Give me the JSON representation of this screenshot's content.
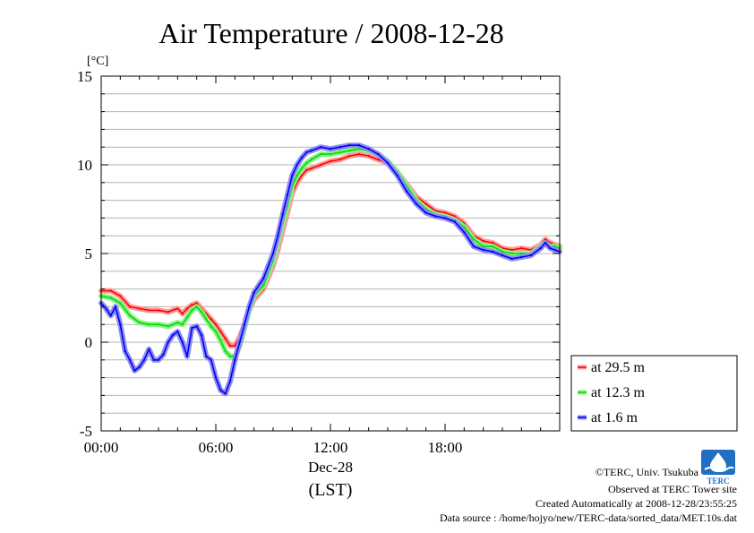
{
  "chart_data": {
    "type": "line",
    "title": "Air Temperature / 2008-12-28",
    "yunit": "[°C]",
    "xlabel_date": "Dec-28",
    "xlabel": "(LST)",
    "xlim": [
      0,
      24
    ],
    "ylim": [
      -5,
      15
    ],
    "x_ticks": [
      {
        "value": 0,
        "label": "00:00"
      },
      {
        "value": 6,
        "label": "06:00"
      },
      {
        "value": 12,
        "label": "12:00"
      },
      {
        "value": 18,
        "label": "18:00"
      }
    ],
    "y_ticks": [
      {
        "value": -5,
        "label": "-5"
      },
      {
        "value": 0,
        "label": "0"
      },
      {
        "value": 5,
        "label": "5"
      },
      {
        "value": 10,
        "label": "10"
      },
      {
        "value": 15,
        "label": "15"
      }
    ],
    "grid": true,
    "legend_position": "bottom-right outside",
    "series": [
      {
        "name": "at 29.5 m",
        "color": "#ff0000",
        "band_color": "#ff9a9a",
        "x": [
          0,
          0.5,
          1,
          1.5,
          2,
          2.5,
          3,
          3.5,
          4,
          4.25,
          4.5,
          4.75,
          5,
          5.25,
          5.5,
          5.75,
          6,
          6.25,
          6.5,
          6.75,
          7,
          7.25,
          7.5,
          7.75,
          8,
          8.5,
          9,
          9.25,
          9.5,
          9.75,
          10,
          10.25,
          10.5,
          10.75,
          11,
          11.5,
          12,
          12.5,
          13,
          13.5,
          14,
          14.5,
          15,
          15.5,
          16,
          16.5,
          17,
          17.5,
          18,
          18.5,
          19,
          19.5,
          20,
          20.5,
          21,
          21.5,
          22,
          22.5,
          23,
          23.25,
          23.5,
          23.75,
          24
        ],
        "y": [
          2.9,
          2.9,
          2.6,
          2.0,
          1.9,
          1.8,
          1.8,
          1.7,
          1.9,
          1.6,
          1.9,
          2.1,
          2.2,
          1.9,
          1.6,
          1.3,
          1.0,
          0.6,
          0.2,
          -0.2,
          -0.2,
          0.3,
          1.0,
          1.8,
          2.4,
          3.0,
          4.3,
          5.2,
          6.3,
          7.3,
          8.4,
          9.0,
          9.4,
          9.7,
          9.8,
          10.0,
          10.2,
          10.3,
          10.5,
          10.6,
          10.5,
          10.3,
          10.1,
          9.6,
          8.9,
          8.2,
          7.8,
          7.4,
          7.3,
          7.1,
          6.7,
          6.0,
          5.7,
          5.6,
          5.3,
          5.2,
          5.3,
          5.2,
          5.5,
          5.8,
          5.6,
          5.5,
          5.4
        ]
      },
      {
        "name": "at 12.3 m",
        "color": "#00dd00",
        "band_color": "#8cf08c",
        "x": [
          0,
          0.5,
          1,
          1.5,
          2,
          2.5,
          3,
          3.5,
          4,
          4.25,
          4.5,
          4.75,
          5,
          5.25,
          5.5,
          5.75,
          6,
          6.25,
          6.5,
          6.75,
          7,
          7.25,
          7.5,
          7.75,
          8,
          8.5,
          9,
          9.25,
          9.5,
          9.75,
          10,
          10.25,
          10.5,
          10.75,
          11,
          11.5,
          12,
          12.5,
          13,
          13.5,
          14,
          14.5,
          15,
          15.5,
          16,
          16.5,
          17,
          17.5,
          18,
          18.5,
          19,
          19.5,
          20,
          20.5,
          21,
          21.5,
          22,
          22.5,
          23,
          23.25,
          23.5,
          23.75,
          24
        ],
        "y": [
          2.6,
          2.5,
          2.2,
          1.5,
          1.1,
          1.0,
          1.0,
          0.9,
          1.1,
          1.0,
          1.4,
          1.8,
          2.0,
          1.7,
          1.3,
          0.9,
          0.6,
          0.1,
          -0.5,
          -0.8,
          -0.8,
          -0.2,
          0.8,
          1.8,
          2.6,
          3.2,
          4.6,
          5.6,
          6.7,
          7.7,
          8.8,
          9.4,
          9.8,
          10.1,
          10.3,
          10.6,
          10.6,
          10.7,
          10.8,
          10.9,
          10.8,
          10.6,
          10.2,
          9.6,
          8.8,
          8.0,
          7.5,
          7.2,
          7.1,
          6.9,
          6.5,
          5.8,
          5.4,
          5.4,
          5.1,
          5.0,
          5.0,
          5.0,
          5.4,
          5.6,
          5.4,
          5.4,
          5.3
        ]
      },
      {
        "name": "at 1.6 m",
        "color": "#0000ff",
        "band_color": "#8c8cf0",
        "x": [
          0,
          0.25,
          0.5,
          0.75,
          1,
          1.25,
          1.5,
          1.75,
          2,
          2.25,
          2.5,
          2.75,
          3,
          3.25,
          3.5,
          3.75,
          4,
          4.25,
          4.5,
          4.75,
          5,
          5.25,
          5.5,
          5.75,
          6,
          6.25,
          6.5,
          6.75,
          7,
          7.25,
          7.5,
          7.75,
          8,
          8.5,
          9,
          9.25,
          9.5,
          9.75,
          10,
          10.25,
          10.5,
          10.75,
          11,
          11.5,
          12,
          12.5,
          13,
          13.5,
          14,
          14.5,
          15,
          15.5,
          16,
          16.5,
          17,
          17.5,
          18,
          18.5,
          19,
          19.5,
          20,
          20.5,
          21,
          21.5,
          22,
          22.5,
          23,
          23.25,
          23.5,
          23.75,
          24
        ],
        "y": [
          2.2,
          1.9,
          1.5,
          2.0,
          1.0,
          -0.5,
          -1.0,
          -1.6,
          -1.4,
          -1.0,
          -0.4,
          -1.0,
          -1.0,
          -0.7,
          0.0,
          0.4,
          0.6,
          0.0,
          -0.8,
          0.8,
          0.9,
          0.4,
          -0.8,
          -1.0,
          -2.0,
          -2.7,
          -2.9,
          -2.2,
          -1.0,
          0.0,
          1.0,
          2.0,
          2.8,
          3.6,
          5.0,
          6.0,
          7.2,
          8.3,
          9.4,
          10.0,
          10.4,
          10.7,
          10.8,
          11.0,
          10.9,
          11.0,
          11.1,
          11.1,
          10.9,
          10.6,
          10.1,
          9.4,
          8.5,
          7.8,
          7.3,
          7.1,
          7.0,
          6.8,
          6.2,
          5.4,
          5.2,
          5.1,
          4.9,
          4.7,
          4.8,
          4.9,
          5.3,
          5.6,
          5.3,
          5.2,
          5.1
        ]
      }
    ]
  },
  "credits": {
    "copyright": "©TERC, Univ. Tsukuba",
    "observed": "Observed at TERC Tower site",
    "created": "Created Automatically at 2008-12-28/23:55:25",
    "source": "Data source : /home/hojyo/new/TERC-data/sorted_data/MET.10s.dat",
    "logo_text": "TERC"
  }
}
